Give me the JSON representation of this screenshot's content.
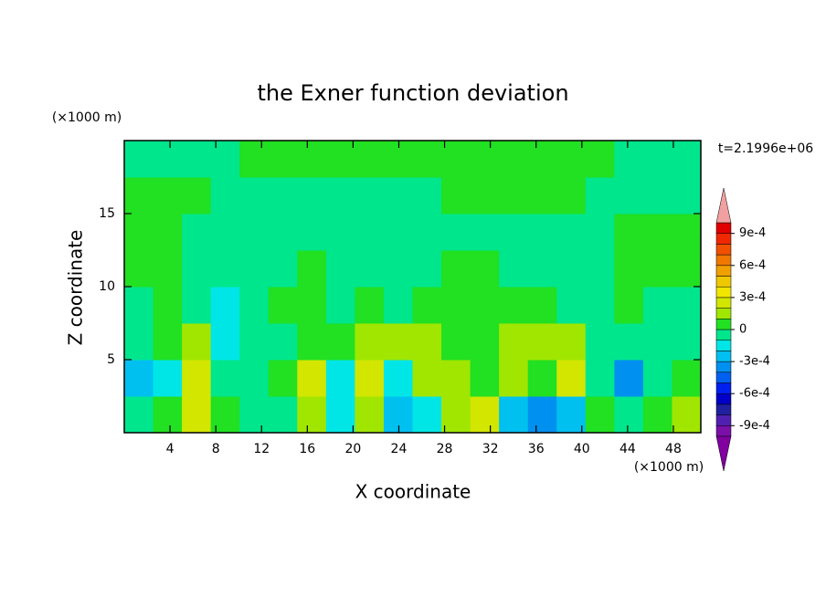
{
  "chart_data": {
    "type": "contour",
    "title": "the Exner function deviation",
    "x_label": "X coordinate",
    "y_label": "Z coordinate",
    "x_unit": "(×1000 m)",
    "y_unit": "(×1000 m)",
    "time_label": "t=2.1996e+06",
    "xlim": [
      0,
      50.4
    ],
    "ylim": [
      0,
      20
    ],
    "xticks": [
      4,
      8,
      12,
      16,
      20,
      24,
      28,
      32,
      36,
      40,
      44,
      48
    ],
    "yticks": [
      5,
      10,
      15
    ],
    "x": [
      1.26,
      3.78,
      6.3,
      8.82,
      11.34,
      13.86,
      16.38,
      18.9,
      21.42,
      23.94,
      26.46,
      28.98,
      31.5,
      34.02,
      36.54,
      39.06,
      41.58,
      44.1,
      46.62,
      49.14
    ],
    "y": [
      1.25,
      3.75,
      6.25,
      8.75,
      11.25,
      13.75,
      16.25,
      18.75
    ],
    "z": [
      [
        -5e-05,
        5e-05,
        0.00025,
        5e-05,
        -5e-05,
        -5e-05,
        0.00015,
        -0.00015,
        0.00015,
        -0.00025,
        -0.00015,
        0.00015,
        0.00025,
        -0.00025,
        -0.00035,
        -0.00025,
        5e-05,
        -5e-05,
        5e-05,
        0.00015
      ],
      [
        -0.00025,
        -0.00015,
        0.00025,
        -5e-05,
        -5e-05,
        5e-05,
        0.00025,
        -0.00015,
        0.00025,
        -0.00015,
        0.00015,
        0.00015,
        5e-05,
        0.00015,
        5e-05,
        0.00025,
        -5e-05,
        -0.00035,
        -5e-05,
        5e-05
      ],
      [
        -5e-05,
        5e-05,
        0.00015,
        -0.00015,
        -5e-05,
        -5e-05,
        5e-05,
        5e-05,
        0.00015,
        0.00015,
        0.00015,
        5e-05,
        5e-05,
        0.00015,
        0.00015,
        0.00015,
        -5e-05,
        -5e-05,
        -5e-05,
        -5e-05
      ],
      [
        -5e-05,
        5e-05,
        -5e-05,
        -0.00015,
        -5e-05,
        5e-05,
        5e-05,
        -5e-05,
        5e-05,
        -5e-05,
        5e-05,
        5e-05,
        5e-05,
        5e-05,
        5e-05,
        -5e-05,
        -5e-05,
        5e-05,
        -5e-05,
        -5e-05
      ],
      [
        5e-05,
        5e-05,
        -5e-05,
        -5e-05,
        -5e-05,
        -5e-05,
        5e-05,
        -5e-05,
        -5e-05,
        -5e-05,
        -5e-05,
        5e-05,
        5e-05,
        -5e-05,
        -5e-05,
        -5e-05,
        -5e-05,
        5e-05,
        5e-05,
        5e-05
      ],
      [
        5e-05,
        5e-05,
        -5e-05,
        -5e-05,
        -5e-05,
        -5e-05,
        -5e-05,
        -5e-05,
        -5e-05,
        -5e-05,
        -5e-05,
        -5e-05,
        -5e-05,
        -5e-05,
        -5e-05,
        -5e-05,
        -5e-05,
        5e-05,
        5e-05,
        5e-05
      ],
      [
        5e-05,
        5e-05,
        5e-05,
        -5e-05,
        -5e-05,
        -5e-05,
        -5e-05,
        -5e-05,
        -5e-05,
        -5e-05,
        -5e-05,
        5e-05,
        5e-05,
        5e-05,
        5e-05,
        5e-05,
        -5e-05,
        -5e-05,
        -5e-05,
        -5e-05
      ],
      [
        -5e-05,
        -5e-05,
        -5e-05,
        -5e-05,
        5e-05,
        5e-05,
        5e-05,
        5e-05,
        5e-05,
        5e-05,
        5e-05,
        5e-05,
        5e-05,
        5e-05,
        5e-05,
        5e-05,
        5e-05,
        -5e-05,
        -5e-05,
        -5e-05
      ]
    ],
    "levels": [
      -0.001,
      -0.0009,
      -0.0008,
      -0.0007,
      -0.0006,
      -0.0005,
      -0.0004,
      -0.0003,
      -0.0002,
      -0.0001,
      0,
      0.0001,
      0.0002,
      0.0003,
      0.0004,
      0.0005,
      0.0006,
      0.0007,
      0.0008,
      0.0009,
      0.001
    ],
    "colors": [
      "#7a10a8",
      "#5020b0",
      "#2020a0",
      "#0000c8",
      "#0020f0",
      "#0060f0",
      "#0090f0",
      "#00c0f0",
      "#00e6e6",
      "#00e68c",
      "#22e022",
      "#a0e600",
      "#d2e600",
      "#f0e600",
      "#f0c800",
      "#f0a000",
      "#f07800",
      "#f05000",
      "#f02800",
      "#e00000"
    ],
    "under_color": "#8000a0",
    "over_color": "#f0a0a0",
    "colorbar_ticks": [
      {
        "value": 0.0009,
        "label": "9e-4"
      },
      {
        "value": 0.0006,
        "label": "6e-4"
      },
      {
        "value": 0.0003,
        "label": "3e-4"
      },
      0,
      {
        "value": -0.0003,
        "label": "-3e-4"
      },
      {
        "value": -0.0006,
        "label": "-6e-4"
      },
      {
        "value": -0.0009,
        "label": "-9e-4"
      }
    ]
  }
}
